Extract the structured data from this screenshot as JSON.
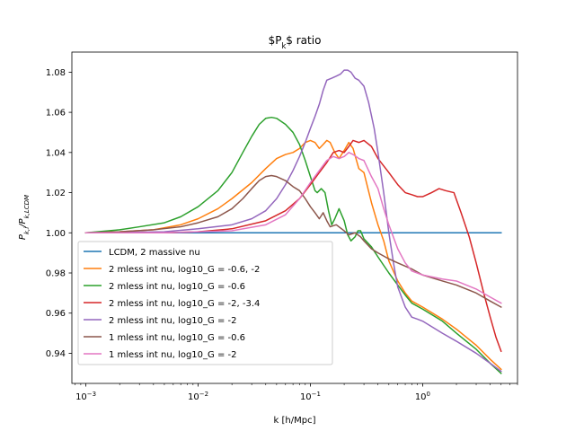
{
  "chart_data": {
    "type": "line",
    "title": "$P_k$ ratio",
    "xlabel": "k [h/Mpc]",
    "ylabel": "$P_{k,i}/P_{k,LCDM}$",
    "xscale": "log",
    "xlim": [
      0.00075,
      7
    ],
    "ylim": [
      0.925,
      1.09
    ],
    "xticks": [
      {
        "value": 0.001,
        "base": "10",
        "exp": "−3"
      },
      {
        "value": 0.01,
        "base": "10",
        "exp": "−2"
      },
      {
        "value": 0.1,
        "base": "10",
        "exp": "−1"
      },
      {
        "value": 1,
        "base": "10",
        "exp": "0"
      }
    ],
    "yticks": [
      "0.94",
      "0.96",
      "0.98",
      "1.00",
      "1.02",
      "1.04",
      "1.06",
      "1.08"
    ],
    "legend_position": "lower-left",
    "grid": false,
    "series": [
      {
        "name": "LCDM, 2 massive nu",
        "color": "#1f77b4",
        "points": [
          [
            0.001,
            1.0
          ],
          [
            5.0,
            1.0
          ]
        ]
      },
      {
        "name": "2 mless int nu, log10_G = -0.6, -2",
        "color": "#ff7f0e",
        "points": [
          [
            0.001,
            1.0
          ],
          [
            0.002,
            1.0005
          ],
          [
            0.004,
            1.0015
          ],
          [
            0.007,
            1.004
          ],
          [
            0.01,
            1.007
          ],
          [
            0.015,
            1.012
          ],
          [
            0.02,
            1.017
          ],
          [
            0.03,
            1.025
          ],
          [
            0.04,
            1.032
          ],
          [
            0.05,
            1.037
          ],
          [
            0.06,
            1.039
          ],
          [
            0.07,
            1.04
          ],
          [
            0.08,
            1.042
          ],
          [
            0.09,
            1.045
          ],
          [
            0.1,
            1.046
          ],
          [
            0.11,
            1.045
          ],
          [
            0.12,
            1.042
          ],
          [
            0.13,
            1.044
          ],
          [
            0.14,
            1.046
          ],
          [
            0.15,
            1.045
          ],
          [
            0.165,
            1.04
          ],
          [
            0.18,
            1.037
          ],
          [
            0.2,
            1.041
          ],
          [
            0.22,
            1.045
          ],
          [
            0.24,
            1.042
          ],
          [
            0.27,
            1.032
          ],
          [
            0.3,
            1.03
          ],
          [
            0.35,
            1.015
          ],
          [
            0.4,
            1.004
          ],
          [
            0.45,
            0.996
          ],
          [
            0.5,
            0.986
          ],
          [
            0.6,
            0.976
          ],
          [
            0.7,
            0.97
          ],
          [
            0.8,
            0.966
          ],
          [
            1.0,
            0.963
          ],
          [
            1.5,
            0.957
          ],
          [
            2.0,
            0.952
          ],
          [
            3.0,
            0.944
          ],
          [
            4.0,
            0.937
          ],
          [
            5.0,
            0.932
          ]
        ]
      },
      {
        "name": "2 mless int nu, log10_G = -0.6",
        "color": "#2ca02c",
        "points": [
          [
            0.001,
            1.0
          ],
          [
            0.002,
            1.0015
          ],
          [
            0.003,
            1.003
          ],
          [
            0.005,
            1.005
          ],
          [
            0.007,
            1.008
          ],
          [
            0.01,
            1.013
          ],
          [
            0.015,
            1.021
          ],
          [
            0.02,
            1.03
          ],
          [
            0.025,
            1.04
          ],
          [
            0.03,
            1.048
          ],
          [
            0.035,
            1.054
          ],
          [
            0.04,
            1.057
          ],
          [
            0.045,
            1.0575
          ],
          [
            0.05,
            1.057
          ],
          [
            0.06,
            1.054
          ],
          [
            0.07,
            1.05
          ],
          [
            0.08,
            1.044
          ],
          [
            0.09,
            1.036
          ],
          [
            0.1,
            1.028
          ],
          [
            0.11,
            1.021
          ],
          [
            0.115,
            1.02
          ],
          [
            0.125,
            1.022
          ],
          [
            0.135,
            1.02
          ],
          [
            0.145,
            1.011
          ],
          [
            0.155,
            1.004
          ],
          [
            0.165,
            1.007
          ],
          [
            0.18,
            1.012
          ],
          [
            0.2,
            1.006
          ],
          [
            0.215,
            0.999
          ],
          [
            0.23,
            0.996
          ],
          [
            0.25,
            0.998
          ],
          [
            0.265,
            1.001
          ],
          [
            0.28,
            1.001
          ],
          [
            0.3,
            0.997
          ],
          [
            0.35,
            0.993
          ],
          [
            0.4,
            0.988
          ],
          [
            0.5,
            0.98
          ],
          [
            0.6,
            0.974
          ],
          [
            0.7,
            0.969
          ],
          [
            0.8,
            0.965
          ],
          [
            1.0,
            0.962
          ],
          [
            1.5,
            0.956
          ],
          [
            2.0,
            0.95
          ],
          [
            3.0,
            0.942
          ],
          [
            4.0,
            0.935
          ],
          [
            5.0,
            0.93
          ]
        ]
      },
      {
        "name": "2 mless int nu, log10_G = -2, -3.4",
        "color": "#d62728",
        "points": [
          [
            0.001,
            1.0
          ],
          [
            0.005,
            1.0
          ],
          [
            0.01,
            1.0005
          ],
          [
            0.02,
            1.002
          ],
          [
            0.04,
            1.006
          ],
          [
            0.06,
            1.011
          ],
          [
            0.08,
            1.017
          ],
          [
            0.1,
            1.024
          ],
          [
            0.12,
            1.03
          ],
          [
            0.14,
            1.035
          ],
          [
            0.16,
            1.04
          ],
          [
            0.18,
            1.041
          ],
          [
            0.2,
            1.04
          ],
          [
            0.22,
            1.043
          ],
          [
            0.24,
            1.046
          ],
          [
            0.27,
            1.045
          ],
          [
            0.3,
            1.046
          ],
          [
            0.35,
            1.043
          ],
          [
            0.4,
            1.037
          ],
          [
            0.5,
            1.03
          ],
          [
            0.6,
            1.024
          ],
          [
            0.7,
            1.02
          ],
          [
            0.8,
            1.019
          ],
          [
            0.9,
            1.018
          ],
          [
            1.0,
            1.018
          ],
          [
            1.2,
            1.02
          ],
          [
            1.4,
            1.022
          ],
          [
            1.6,
            1.021
          ],
          [
            1.9,
            1.02
          ],
          [
            2.2,
            1.01
          ],
          [
            2.6,
            0.998
          ],
          [
            3.0,
            0.985
          ],
          [
            3.5,
            0.97
          ],
          [
            4.0,
            0.958
          ],
          [
            4.5,
            0.948
          ],
          [
            5.0,
            0.941
          ]
        ]
      },
      {
        "name": "2 mless int nu, log10_G = -2",
        "color": "#9467bd",
        "points": [
          [
            0.001,
            1.0
          ],
          [
            0.005,
            1.0005
          ],
          [
            0.01,
            1.002
          ],
          [
            0.02,
            1.004
          ],
          [
            0.03,
            1.007
          ],
          [
            0.04,
            1.011
          ],
          [
            0.05,
            1.017
          ],
          [
            0.06,
            1.024
          ],
          [
            0.07,
            1.031
          ],
          [
            0.08,
            1.038
          ],
          [
            0.09,
            1.045
          ],
          [
            0.1,
            1.052
          ],
          [
            0.11,
            1.058
          ],
          [
            0.12,
            1.064
          ],
          [
            0.13,
            1.071
          ],
          [
            0.14,
            1.076
          ],
          [
            0.155,
            1.077
          ],
          [
            0.17,
            1.078
          ],
          [
            0.185,
            1.079
          ],
          [
            0.2,
            1.081
          ],
          [
            0.215,
            1.081
          ],
          [
            0.23,
            1.08
          ],
          [
            0.25,
            1.077
          ],
          [
            0.27,
            1.076
          ],
          [
            0.3,
            1.073
          ],
          [
            0.33,
            1.065
          ],
          [
            0.37,
            1.052
          ],
          [
            0.4,
            1.04
          ],
          [
            0.45,
            1.02
          ],
          [
            0.5,
            1.0
          ],
          [
            0.55,
            0.985
          ],
          [
            0.6,
            0.973
          ],
          [
            0.7,
            0.963
          ],
          [
            0.8,
            0.958
          ],
          [
            0.9,
            0.957
          ],
          [
            1.0,
            0.956
          ],
          [
            1.5,
            0.95
          ],
          [
            2.0,
            0.946
          ],
          [
            3.0,
            0.94
          ],
          [
            4.0,
            0.935
          ],
          [
            5.0,
            0.931
          ]
        ]
      },
      {
        "name": "1 mless int nu, log10_G = -0.6",
        "color": "#8c564b",
        "points": [
          [
            0.001,
            1.0
          ],
          [
            0.002,
            1.0005
          ],
          [
            0.004,
            1.0015
          ],
          [
            0.007,
            1.003
          ],
          [
            0.01,
            1.005
          ],
          [
            0.015,
            1.008
          ],
          [
            0.02,
            1.012
          ],
          [
            0.025,
            1.017
          ],
          [
            0.03,
            1.022
          ],
          [
            0.035,
            1.026
          ],
          [
            0.04,
            1.028
          ],
          [
            0.045,
            1.0285
          ],
          [
            0.05,
            1.028
          ],
          [
            0.06,
            1.026
          ],
          [
            0.07,
            1.023
          ],
          [
            0.08,
            1.021
          ],
          [
            0.09,
            1.017
          ],
          [
            0.1,
            1.013
          ],
          [
            0.11,
            1.01
          ],
          [
            0.12,
            1.007
          ],
          [
            0.13,
            1.01
          ],
          [
            0.14,
            1.006
          ],
          [
            0.15,
            1.003
          ],
          [
            0.17,
            1.004
          ],
          [
            0.2,
            1.001
          ],
          [
            0.22,
            0.999
          ],
          [
            0.25,
            1.0
          ],
          [
            0.28,
            0.998
          ],
          [
            0.3,
            0.996
          ],
          [
            0.35,
            0.992
          ],
          [
            0.4,
            0.99
          ],
          [
            0.5,
            0.987
          ],
          [
            0.6,
            0.985
          ],
          [
            0.8,
            0.982
          ],
          [
            1.0,
            0.979
          ],
          [
            1.5,
            0.976
          ],
          [
            2.0,
            0.974
          ],
          [
            3.0,
            0.97
          ],
          [
            4.0,
            0.966
          ],
          [
            5.0,
            0.963
          ]
        ]
      },
      {
        "name": "1 mless int nu, log10_G = -2",
        "color": "#e377c2",
        "points": [
          [
            0.001,
            1.0
          ],
          [
            0.005,
            1.0
          ],
          [
            0.01,
            1.0005
          ],
          [
            0.02,
            1.001
          ],
          [
            0.04,
            1.004
          ],
          [
            0.06,
            1.009
          ],
          [
            0.08,
            1.017
          ],
          [
            0.1,
            1.025
          ],
          [
            0.12,
            1.031
          ],
          [
            0.14,
            1.036
          ],
          [
            0.16,
            1.038
          ],
          [
            0.18,
            1.037
          ],
          [
            0.2,
            1.038
          ],
          [
            0.22,
            1.04
          ],
          [
            0.24,
            1.039
          ],
          [
            0.27,
            1.037
          ],
          [
            0.3,
            1.036
          ],
          [
            0.35,
            1.028
          ],
          [
            0.4,
            1.022
          ],
          [
            0.45,
            1.012
          ],
          [
            0.5,
            1.004
          ],
          [
            0.6,
            0.992
          ],
          [
            0.7,
            0.985
          ],
          [
            0.8,
            0.981
          ],
          [
            1.0,
            0.979
          ],
          [
            1.5,
            0.977
          ],
          [
            2.0,
            0.976
          ],
          [
            3.0,
            0.972
          ],
          [
            4.0,
            0.968
          ],
          [
            5.0,
            0.965
          ]
        ]
      }
    ]
  }
}
